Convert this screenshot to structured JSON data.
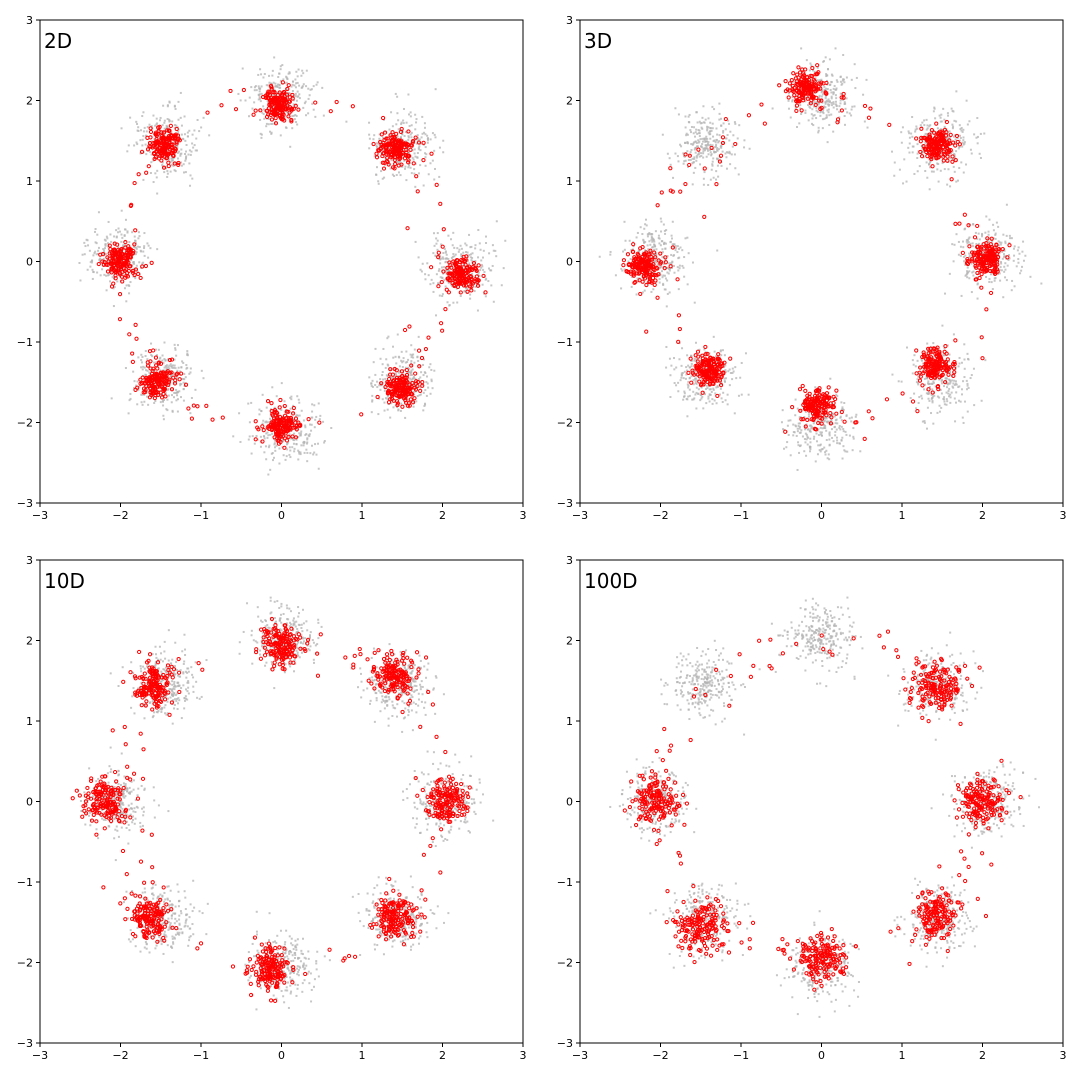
{
  "colors": {
    "target": "#b3b3b3",
    "generated": "#ff0000",
    "axes": "#000000",
    "background": "#ffffff"
  },
  "chart_data": [
    {
      "type": "scatter",
      "title": "2D",
      "xlim": [
        -3,
        3
      ],
      "ylim": [
        -3,
        3
      ],
      "xticks": [
        -3,
        -2,
        -1,
        0,
        1,
        2,
        3
      ],
      "yticks": [
        -3,
        -2,
        -1,
        0,
        1,
        2,
        3
      ],
      "xtick_labels": [
        "−3",
        "−2",
        "−1",
        "0",
        "1",
        "2",
        "3"
      ],
      "ytick_labels": [
        "−3",
        "−2",
        "−1",
        "0",
        "1",
        "2",
        "3"
      ],
      "grid": false,
      "target_clusters": [
        [
          2.2,
          -0.1
        ],
        [
          1.5,
          1.45
        ],
        [
          0,
          2.05
        ],
        [
          -1.45,
          1.5
        ],
        [
          -2.05,
          0.05
        ],
        [
          -1.45,
          -1.45
        ],
        [
          0.05,
          -2.1
        ],
        [
          1.5,
          -1.5
        ]
      ],
      "target_spread": 0.2,
      "series": [
        {
          "values": [
            [
              2.25,
              -0.15
            ],
            [
              1.4,
              1.4
            ],
            [
              -0.05,
              1.95
            ],
            [
              -1.45,
              1.45
            ],
            [
              -2.0,
              0.0
            ],
            [
              -1.55,
              -1.5
            ],
            [
              -0.0,
              -2.05
            ],
            [
              1.5,
              -1.55
            ]
          ],
          "spread": 0.1
        }
      ]
    },
    {
      "type": "scatter",
      "title": "3D",
      "xlim": [
        -3,
        3
      ],
      "ylim": [
        -3,
        3
      ],
      "xticks": [
        -3,
        -2,
        -1,
        0,
        1,
        2,
        3
      ],
      "yticks": [
        -3,
        -2,
        -1,
        0,
        1,
        2,
        3
      ],
      "xtick_labels": [
        "−3",
        "−2",
        "−1",
        "0",
        "1",
        "2",
        "3"
      ],
      "ytick_labels": [
        "−3",
        "−2",
        "−1",
        "0",
        "1",
        "2",
        "3"
      ],
      "grid": false,
      "target_clusters": [
        [
          2.05,
          0.05
        ],
        [
          1.45,
          1.45
        ],
        [
          0,
          2.05
        ],
        [
          -1.45,
          1.45
        ],
        [
          -2.05,
          0.05
        ],
        [
          -1.45,
          -1.45
        ],
        [
          0,
          -2.05
        ],
        [
          1.45,
          -1.45
        ]
      ],
      "target_spread": 0.2,
      "series": [
        {
          "values": [
            [
              2.05,
              0.05
            ],
            [
              1.45,
              1.45
            ],
            [
              -0.2,
              2.15
            ],
            [
              -2.2,
              -0.05
            ],
            [
              -1.4,
              -1.35
            ],
            [
              -0.05,
              -1.8
            ],
            [
              1.4,
              -1.3
            ]
          ],
          "spread": 0.1
        }
      ]
    },
    {
      "type": "scatter",
      "title": "10D",
      "xlim": [
        -3,
        3
      ],
      "ylim": [
        -3,
        3
      ],
      "xticks": [
        -3,
        -2,
        -1,
        0,
        1,
        2,
        3
      ],
      "yticks": [
        -3,
        -2,
        -1,
        0,
        1,
        2,
        3
      ],
      "xtick_labels": [
        "−3",
        "−2",
        "−1",
        "0",
        "1",
        "2",
        "3"
      ],
      "ytick_labels": [
        "−3",
        "−2",
        "−1",
        "0",
        "1",
        "2",
        "3"
      ],
      "grid": false,
      "target_clusters": [
        [
          2.05,
          0
        ],
        [
          1.45,
          1.45
        ],
        [
          0,
          2.05
        ],
        [
          -1.45,
          1.45
        ],
        [
          -2.05,
          0
        ],
        [
          -1.45,
          -1.45
        ],
        [
          0,
          -2.05
        ],
        [
          1.45,
          -1.45
        ]
      ],
      "target_spread": 0.2,
      "series": [
        {
          "values": [
            [
              2.05,
              0.0
            ],
            [
              1.4,
              1.55
            ],
            [
              -1.6,
              1.45
            ],
            [
              -2.2,
              0.0
            ],
            [
              -1.65,
              -1.45
            ],
            [
              -0.15,
              -2.1
            ],
            [
              1.4,
              -1.45
            ],
            [
              0.0,
              1.95
            ]
          ],
          "spread": 0.13
        }
      ]
    },
    {
      "type": "scatter",
      "title": "100D",
      "xlim": [
        -3,
        3
      ],
      "ylim": [
        -3,
        3
      ],
      "xticks": [
        -3,
        -2,
        -1,
        0,
        1,
        2,
        3
      ],
      "yticks": [
        -3,
        -2,
        -1,
        0,
        1,
        2,
        3
      ],
      "xtick_labels": [
        "−3",
        "−2",
        "−1",
        "0",
        "1",
        "2",
        "3"
      ],
      "ytick_labels": [
        "−3",
        "−2",
        "−1",
        "0",
        "1",
        "2",
        "3"
      ],
      "grid": false,
      "target_clusters": [
        [
          2.05,
          0
        ],
        [
          1.45,
          1.45
        ],
        [
          0,
          2.05
        ],
        [
          -1.45,
          1.45
        ],
        [
          -2.05,
          0
        ],
        [
          -1.45,
          -1.45
        ],
        [
          0,
          -2.05
        ],
        [
          1.45,
          -1.45
        ]
      ],
      "target_spread": 0.2,
      "series": [
        {
          "values": [
            [
              2.0,
              0.0
            ],
            [
              1.45,
              1.45
            ],
            [
              -2.05,
              0.0
            ],
            [
              -1.5,
              -1.55
            ],
            [
              0.0,
              -1.95
            ],
            [
              1.45,
              -1.4
            ]
          ],
          "spread": 0.15
        }
      ]
    }
  ]
}
